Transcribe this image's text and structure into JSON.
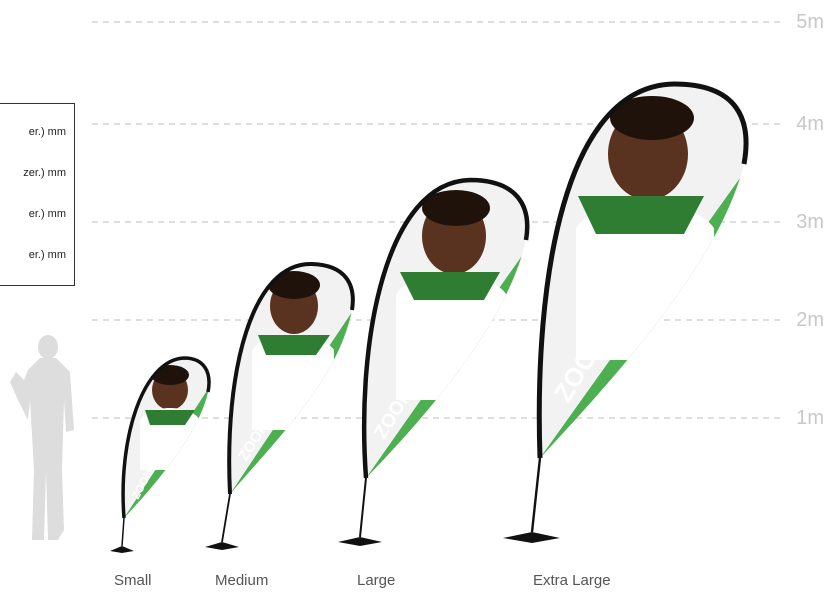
{
  "scale_labels": [
    "1m",
    "2m",
    "3m",
    "4m",
    "5m"
  ],
  "legend_lines": [
    "er.) mm",
    "zer.) mm",
    "er.) mm",
    "er.) mm"
  ],
  "sizes": [
    {
      "name": "Small"
    },
    {
      "name": "Medium"
    },
    {
      "name": "Large"
    },
    {
      "name": "Extra Large"
    }
  ],
  "flag_brand_text": "ZOOM QUILL",
  "colors": {
    "gridline": "#bdbdbd",
    "scale_text": "#c8c8c8",
    "silhouette": "#dddddd",
    "flag_green": "#4caf50",
    "pole": "#111111",
    "skin": "#5a3320",
    "hair": "#1f120b"
  }
}
